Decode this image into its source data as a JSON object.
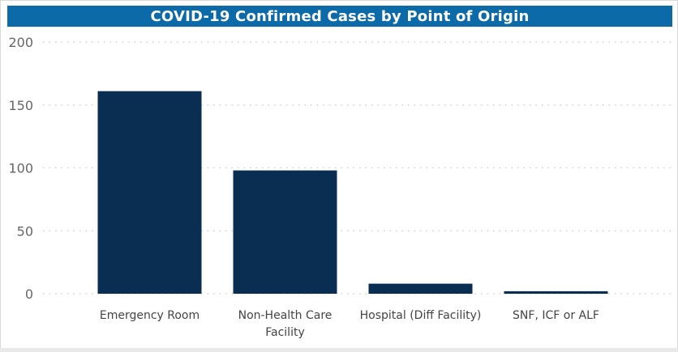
{
  "colors": {
    "title_bg": "#0d6aa8",
    "bar": "#0a2d52",
    "grid": "#c8c8c8"
  },
  "chart_data": {
    "type": "bar",
    "title": "COVID-19 Confirmed Cases by Point of Origin",
    "categories": [
      [
        "Emergency Room"
      ],
      [
        "Non-Health Care",
        "Facility"
      ],
      [
        "Hospital (Diff Facility)"
      ],
      [
        "SNF, ICF or ALF"
      ]
    ],
    "values": [
      161,
      98,
      8,
      2
    ],
    "ylim": [
      0,
      200
    ],
    "yticks": [
      0,
      50,
      100,
      150,
      200
    ],
    "grid": true,
    "grid_style": "dotted"
  }
}
